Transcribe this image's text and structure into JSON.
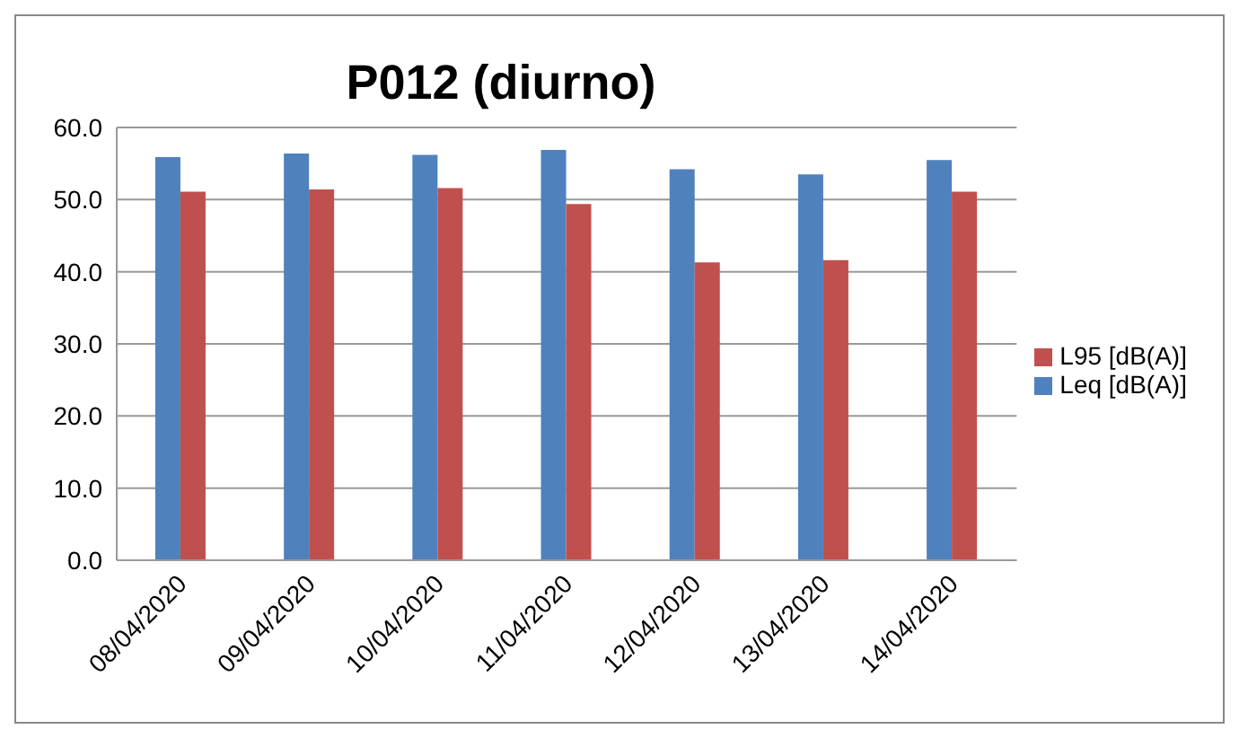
{
  "chart_data": {
    "type": "bar",
    "title": "P012 (diurno)",
    "categories": [
      "08/04/2020",
      "09/04/2020",
      "10/04/2020",
      "11/04/2020",
      "12/04/2020",
      "13/04/2020",
      "14/04/2020"
    ],
    "series": [
      {
        "name": "Leq [dB(A)]",
        "color": "#4f81bd",
        "values": [
          55.9,
          56.4,
          56.2,
          56.9,
          54.2,
          53.5,
          55.5
        ]
      },
      {
        "name": "L95 [dB(A)]",
        "color": "#c0504d",
        "values": [
          51.1,
          51.4,
          51.6,
          49.4,
          41.3,
          41.6,
          51.1
        ]
      }
    ],
    "ylim": [
      0,
      60
    ],
    "yticks": [
      {
        "value": 0,
        "label": "0.0"
      },
      {
        "value": 10,
        "label": "10.0"
      },
      {
        "value": 20,
        "label": "20.0"
      },
      {
        "value": 30,
        "label": "30.0"
      },
      {
        "value": 40,
        "label": "40.0"
      },
      {
        "value": 50,
        "label": "50.0"
      },
      {
        "value": 60,
        "label": "60.0"
      }
    ],
    "grid": "y",
    "legend": "right"
  }
}
